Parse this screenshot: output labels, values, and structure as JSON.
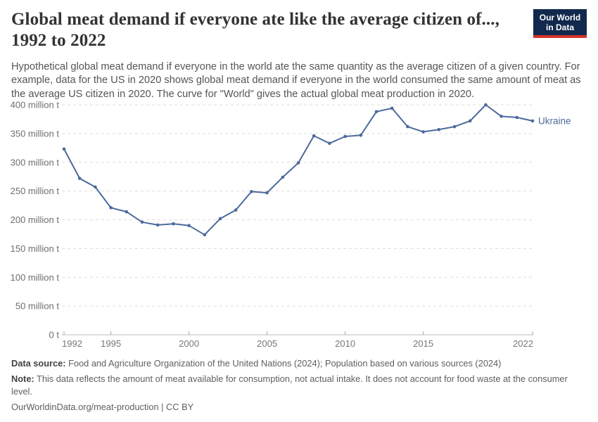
{
  "header": {
    "title": "Global meat demand if everyone ate like the average citizen of..., 1992 to 2022",
    "subtitle": "Hypothetical global meat demand if everyone in the world ate the same quantity as the average citizen of a given country. For example, data for the US in 2020 shows global meat demand if everyone in the world consumed the same amount of meat as the average US citizen in 2020. The curve for \"World\" gives the actual global meat production in 2020.",
    "logo": {
      "line1": "Our World",
      "line2": "in Data",
      "bg_color": "#12294D",
      "accent_color": "#D5352B"
    }
  },
  "chart_data": {
    "type": "line",
    "title": "Global meat demand if everyone ate like the average citizen of..., 1992 to 2022",
    "x": [
      1992,
      1993,
      1994,
      1995,
      1996,
      1997,
      1998,
      1999,
      2000,
      2001,
      2002,
      2003,
      2004,
      2005,
      2006,
      2007,
      2008,
      2009,
      2010,
      2011,
      2012,
      2013,
      2014,
      2015,
      2016,
      2017,
      2018,
      2019,
      2020,
      2021,
      2022
    ],
    "series": [
      {
        "name": "Ukraine",
        "color": "#4C6A9C",
        "values": [
          323,
          272,
          257,
          221,
          214,
          196,
          191,
          193,
          190,
          174,
          202,
          217,
          249,
          247,
          274,
          299,
          346,
          333,
          345,
          347,
          388,
          394,
          362,
          353,
          357,
          362,
          372,
          400,
          380,
          378,
          372
        ]
      }
    ],
    "unit": "million t",
    "ylim": [
      0,
      400
    ],
    "yticks": [
      0,
      50,
      100,
      150,
      200,
      250,
      300,
      350,
      400
    ],
    "ytick_labels": [
      "0 t",
      "50 million t",
      "100 million t",
      "150 million t",
      "200 million t",
      "250 million t",
      "300 million t",
      "350 million t",
      "400 million t"
    ],
    "xticks": [
      1992,
      1995,
      2000,
      2005,
      2010,
      2015,
      2022
    ],
    "grid": "horizontal-dashed",
    "legend_position": "end-of-line-label"
  },
  "footer": {
    "data_source_label": "Data source:",
    "data_source_text": "Food and Agriculture Organization of the United Nations (2024); Population based on various sources (2024)",
    "note_label": "Note:",
    "note_text": "This data reflects the amount of meat available for consumption, not actual intake. It does not account for food waste at the consumer level.",
    "url": "OurWorldinData.org/meat-production",
    "separator": " | ",
    "license": "CC BY"
  }
}
